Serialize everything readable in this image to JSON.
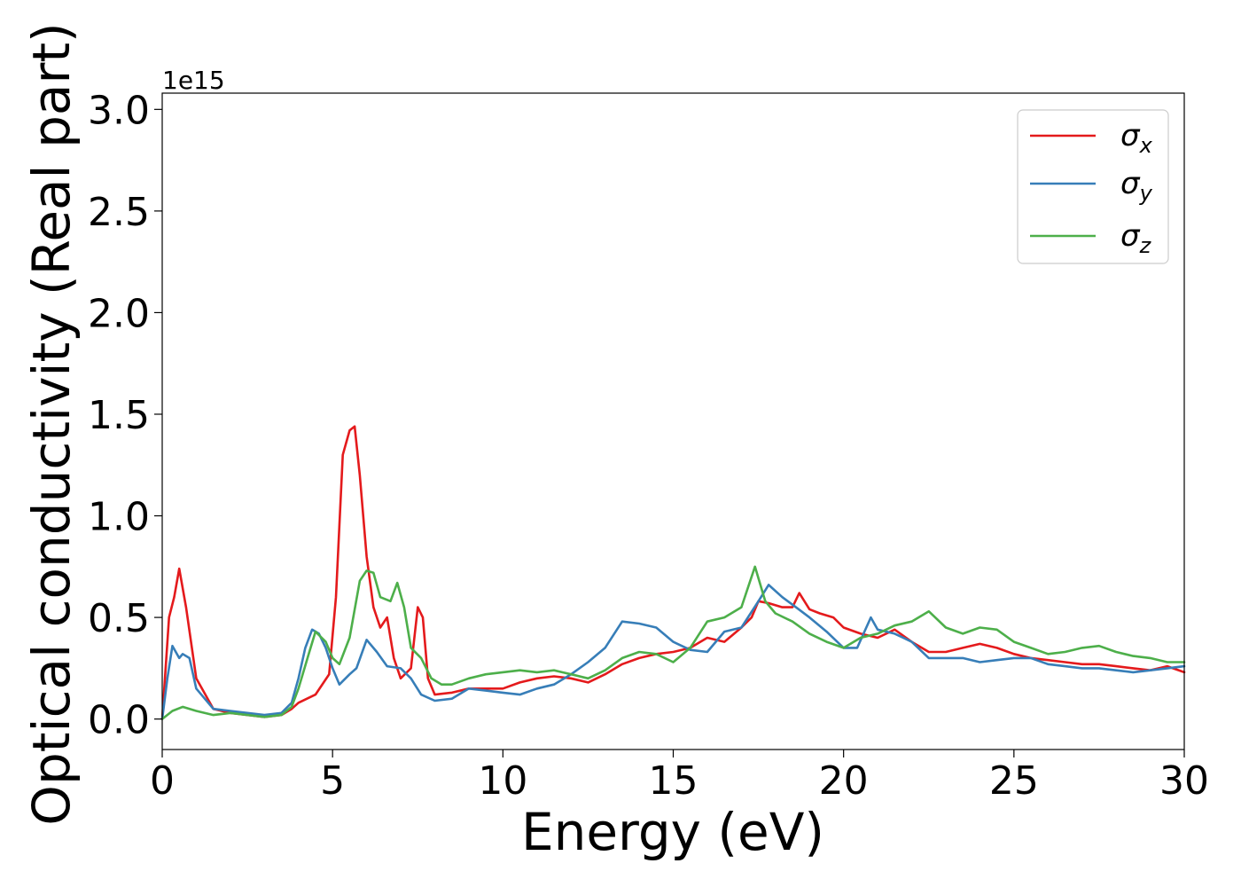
{
  "chart_data": {
    "type": "line",
    "title": "",
    "xlabel": "Energy (eV)",
    "ylabel": "Optical conductivity (Real part)",
    "y_offset_label": "1e15",
    "xlim": [
      0,
      30
    ],
    "ylim": [
      -0.15,
      3.08
    ],
    "x_ticks": [
      0,
      5,
      10,
      15,
      20,
      25,
      30
    ],
    "y_ticks": [
      0.0,
      0.5,
      1.0,
      1.5,
      2.0,
      2.5,
      3.0
    ],
    "x_tick_labels": [
      "0",
      "5",
      "10",
      "15",
      "20",
      "25",
      "30"
    ],
    "y_tick_labels": [
      "0.0",
      "0.5",
      "1.0",
      "1.5",
      "2.0",
      "2.5",
      "3.0"
    ],
    "grid": false,
    "legend_position": "top-right",
    "series": [
      {
        "name": "σ",
        "name_sub": "x",
        "color": "#e41a1c",
        "x": [
          0,
          0.2,
          0.35,
          0.5,
          0.7,
          1.0,
          1.5,
          2.0,
          2.5,
          3.0,
          3.5,
          3.8,
          4.0,
          4.5,
          4.9,
          5.1,
          5.3,
          5.5,
          5.65,
          5.8,
          6.0,
          6.2,
          6.4,
          6.6,
          6.8,
          7.0,
          7.3,
          7.5,
          7.65,
          7.8,
          8.0,
          8.5,
          9.0,
          9.5,
          10.0,
          10.5,
          11.0,
          11.5,
          12.0,
          12.5,
          13.0,
          13.5,
          14.0,
          14.5,
          15.0,
          15.5,
          16.0,
          16.5,
          17.0,
          17.3,
          17.5,
          17.8,
          18.2,
          18.5,
          18.7,
          19.0,
          19.3,
          19.7,
          20.0,
          20.5,
          21.0,
          21.5,
          22.0,
          22.5,
          23.0,
          23.5,
          24.0,
          24.5,
          25.0,
          25.5,
          26.0,
          26.5,
          27.0,
          27.5,
          28.0,
          28.5,
          29.0,
          29.5,
          30.0
        ],
        "values": [
          0.0,
          0.5,
          0.6,
          0.74,
          0.55,
          0.2,
          0.05,
          0.03,
          0.02,
          0.01,
          0.02,
          0.05,
          0.08,
          0.12,
          0.22,
          0.6,
          1.3,
          1.42,
          1.44,
          1.2,
          0.8,
          0.55,
          0.45,
          0.5,
          0.3,
          0.2,
          0.25,
          0.55,
          0.5,
          0.2,
          0.12,
          0.13,
          0.15,
          0.15,
          0.15,
          0.18,
          0.2,
          0.21,
          0.2,
          0.18,
          0.22,
          0.27,
          0.3,
          0.32,
          0.33,
          0.35,
          0.4,
          0.38,
          0.45,
          0.5,
          0.58,
          0.57,
          0.55,
          0.55,
          0.62,
          0.54,
          0.52,
          0.5,
          0.45,
          0.42,
          0.4,
          0.44,
          0.38,
          0.33,
          0.33,
          0.35,
          0.37,
          0.35,
          0.32,
          0.3,
          0.29,
          0.28,
          0.27,
          0.27,
          0.26,
          0.25,
          0.24,
          0.26,
          0.23
        ]
      },
      {
        "name": "σ",
        "name_sub": "y",
        "color": "#377eb8",
        "x": [
          0,
          0.15,
          0.3,
          0.5,
          0.6,
          0.8,
          1.0,
          1.5,
          2.0,
          2.5,
          3.0,
          3.5,
          3.8,
          4.0,
          4.2,
          4.4,
          4.6,
          4.8,
          5.0,
          5.2,
          5.5,
          5.7,
          6.0,
          6.3,
          6.6,
          7.0,
          7.3,
          7.6,
          8.0,
          8.5,
          9.0,
          9.5,
          10.0,
          10.5,
          11.0,
          11.5,
          12.0,
          12.5,
          13.0,
          13.5,
          14.0,
          14.5,
          15.0,
          15.5,
          16.0,
          16.5,
          17.0,
          17.5,
          17.8,
          18.2,
          18.6,
          19.0,
          19.5,
          20.0,
          20.4,
          20.8,
          21.0,
          21.5,
          22.0,
          22.5,
          23.0,
          23.5,
          24.0,
          24.5,
          25.0,
          25.5,
          26.0,
          26.5,
          27.0,
          27.5,
          28.0,
          28.5,
          29.0,
          29.5,
          30.0
        ],
        "values": [
          0.0,
          0.2,
          0.36,
          0.3,
          0.32,
          0.3,
          0.15,
          0.05,
          0.04,
          0.03,
          0.02,
          0.03,
          0.08,
          0.2,
          0.35,
          0.44,
          0.42,
          0.35,
          0.25,
          0.17,
          0.22,
          0.25,
          0.39,
          0.33,
          0.26,
          0.25,
          0.2,
          0.12,
          0.09,
          0.1,
          0.15,
          0.14,
          0.13,
          0.12,
          0.15,
          0.17,
          0.22,
          0.28,
          0.35,
          0.48,
          0.47,
          0.45,
          0.38,
          0.34,
          0.33,
          0.43,
          0.45,
          0.58,
          0.66,
          0.6,
          0.55,
          0.5,
          0.43,
          0.35,
          0.35,
          0.5,
          0.44,
          0.42,
          0.38,
          0.3,
          0.3,
          0.3,
          0.28,
          0.29,
          0.3,
          0.3,
          0.27,
          0.26,
          0.25,
          0.25,
          0.24,
          0.23,
          0.24,
          0.25,
          0.26
        ]
      },
      {
        "name": "σ",
        "name_sub": "z",
        "color": "#4daf4a",
        "x": [
          0,
          0.3,
          0.6,
          1.0,
          1.5,
          2.0,
          2.5,
          3.0,
          3.5,
          3.8,
          4.0,
          4.3,
          4.5,
          4.8,
          5.0,
          5.2,
          5.5,
          5.8,
          6.0,
          6.2,
          6.4,
          6.7,
          6.9,
          7.1,
          7.3,
          7.6,
          7.9,
          8.2,
          8.5,
          9.0,
          9.5,
          10.0,
          10.5,
          11.0,
          11.5,
          12.0,
          12.5,
          13.0,
          13.5,
          14.0,
          14.5,
          15.0,
          15.5,
          16.0,
          16.5,
          17.0,
          17.4,
          17.7,
          18.0,
          18.5,
          19.0,
          19.5,
          20.0,
          20.5,
          21.0,
          21.5,
          22.0,
          22.5,
          23.0,
          23.5,
          24.0,
          24.5,
          25.0,
          25.5,
          26.0,
          26.5,
          27.0,
          27.5,
          28.0,
          28.5,
          29.0,
          29.5,
          30.0
        ],
        "values": [
          0.0,
          0.04,
          0.06,
          0.04,
          0.02,
          0.03,
          0.02,
          0.01,
          0.02,
          0.06,
          0.15,
          0.32,
          0.43,
          0.38,
          0.3,
          0.27,
          0.4,
          0.68,
          0.73,
          0.72,
          0.6,
          0.58,
          0.67,
          0.55,
          0.35,
          0.3,
          0.2,
          0.17,
          0.17,
          0.2,
          0.22,
          0.23,
          0.24,
          0.23,
          0.24,
          0.22,
          0.2,
          0.24,
          0.3,
          0.33,
          0.32,
          0.28,
          0.35,
          0.48,
          0.5,
          0.55,
          0.75,
          0.58,
          0.52,
          0.48,
          0.42,
          0.38,
          0.35,
          0.4,
          0.42,
          0.46,
          0.48,
          0.53,
          0.45,
          0.42,
          0.45,
          0.44,
          0.38,
          0.35,
          0.32,
          0.33,
          0.35,
          0.36,
          0.33,
          0.31,
          0.3,
          0.28,
          0.28
        ]
      }
    ]
  }
}
